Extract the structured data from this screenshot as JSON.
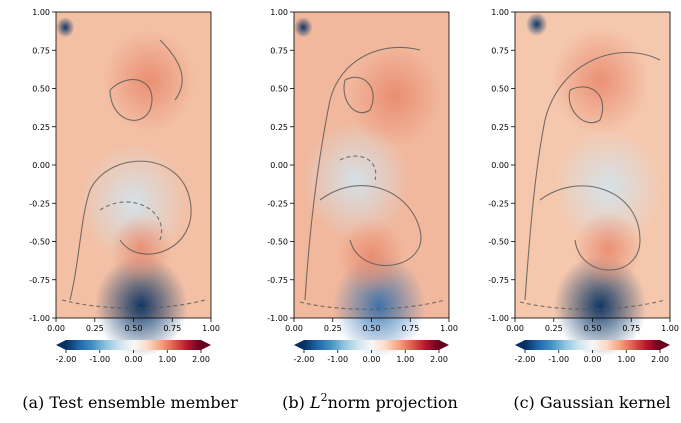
{
  "chart_data": [
    {
      "type": "heatmap",
      "caption": "(a) Test ensemble member",
      "xlim": [
        0.0,
        1.0
      ],
      "ylim": [
        -1.0,
        1.0
      ],
      "x_ticks": [
        "0.00",
        "0.25",
        "0.50",
        "0.75",
        "1.00"
      ],
      "y_ticks": [
        "1.00",
        "0.75",
        "0.50",
        "0.25",
        "0.00",
        "-0.25",
        "-0.50",
        "-0.75",
        "-1.00"
      ],
      "colorbar": {
        "range": [
          -2.0,
          2.0
        ],
        "ticks": [
          "-2.00",
          "-1.00",
          "0.00",
          "1.00",
          "2.00"
        ],
        "colormap": "RdBu_r",
        "extend": "both"
      },
      "features": [
        {
          "x": 0.06,
          "y": 0.9,
          "value": -2.0,
          "radius": 0.06
        },
        {
          "x": 0.55,
          "y": -0.92,
          "value": -1.6,
          "radius": 0.3
        },
        {
          "x": 0.5,
          "y": -0.25,
          "value": -0.4,
          "radius": 0.35
        },
        {
          "x": 0.6,
          "y": 0.55,
          "value": 0.8,
          "radius": 0.3
        },
        {
          "x": 0.55,
          "y": -0.55,
          "value": 0.6,
          "radius": 0.2
        }
      ]
    },
    {
      "type": "heatmap",
      "caption": "(b) L2norm projection",
      "xlim": [
        0.0,
        1.0
      ],
      "ylim": [
        -1.0,
        1.0
      ],
      "x_ticks": [
        "0.00",
        "0.25",
        "0.50",
        "0.75",
        "1.00"
      ],
      "y_ticks": [
        "1.00",
        "0.75",
        "0.50",
        "0.25",
        "0.00",
        "-0.25",
        "-0.50",
        "-0.75",
        "-1.00"
      ],
      "colorbar": {
        "range": [
          -2.0,
          2.0
        ],
        "ticks": [
          "-2.00",
          "-1.00",
          "0.00",
          "1.00",
          "2.00"
        ],
        "colormap": "RdBu_r",
        "extend": "both"
      },
      "features": [
        {
          "x": 0.06,
          "y": 0.9,
          "value": -1.8,
          "radius": 0.06
        },
        {
          "x": 0.55,
          "y": -0.92,
          "value": -1.4,
          "radius": 0.3
        },
        {
          "x": 0.4,
          "y": -0.1,
          "value": -0.3,
          "radius": 0.35
        },
        {
          "x": 0.65,
          "y": 0.45,
          "value": 0.9,
          "radius": 0.3
        },
        {
          "x": 0.5,
          "y": -0.6,
          "value": 0.7,
          "radius": 0.22
        }
      ]
    },
    {
      "type": "heatmap",
      "caption": "(c) Gaussian kernel",
      "xlim": [
        0.0,
        1.0
      ],
      "ylim": [
        -1.0,
        1.0
      ],
      "x_ticks": [
        "0.00",
        "0.25",
        "0.50",
        "0.75",
        "1.00"
      ],
      "y_ticks": [
        "1.00",
        "0.75",
        "0.50",
        "0.25",
        "0.00",
        "-0.25",
        "-0.50",
        "-0.75",
        "-1.00"
      ],
      "colorbar": {
        "range": [
          -2.0,
          2.0
        ],
        "ticks": [
          "-2.00",
          "-1.00",
          "0.00",
          "1.00",
          "2.00"
        ],
        "colormap": "RdBu_r",
        "extend": "both"
      },
      "features": [
        {
          "x": 0.14,
          "y": 0.92,
          "value": -1.6,
          "radius": 0.07
        },
        {
          "x": 0.55,
          "y": -0.92,
          "value": -1.5,
          "radius": 0.3
        },
        {
          "x": 0.6,
          "y": -0.15,
          "value": -0.3,
          "radius": 0.35
        },
        {
          "x": 0.55,
          "y": 0.55,
          "value": 0.7,
          "radius": 0.32
        },
        {
          "x": 0.6,
          "y": -0.55,
          "value": 0.5,
          "radius": 0.22
        }
      ]
    }
  ],
  "captions": {
    "a": {
      "label": "(a) Test ensemble member"
    },
    "b": {
      "prefix": "(b) ",
      "symbol": "L",
      "sup": "2",
      "suffix": "norm projection"
    },
    "c": {
      "label": "(c) Gaussian kernel"
    }
  }
}
